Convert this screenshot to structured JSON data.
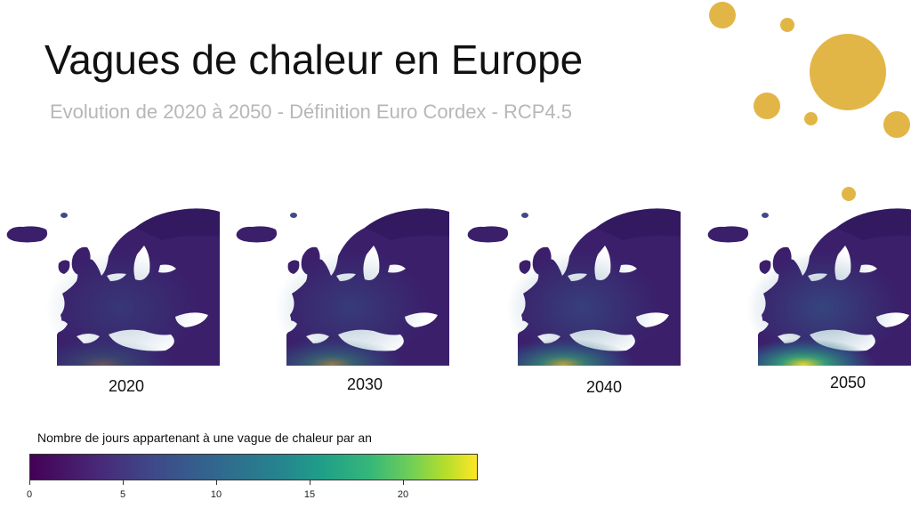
{
  "title": "Vagues de chaleur en Europe",
  "subtitle": "Evolution de 2020 à 2050 - Définition Euro Cordex - RCP4.5",
  "maps": [
    {
      "year": "2020",
      "south_intensity": 0.25
    },
    {
      "year": "2030",
      "south_intensity": 0.45
    },
    {
      "year": "2040",
      "south_intensity": 0.65
    },
    {
      "year": "2050",
      "south_intensity": 0.9
    }
  ],
  "legend": {
    "title": "Nombre de jours appartenant à une vague de chaleur par an",
    "ticks": [
      "0",
      "5",
      "10",
      "15",
      "20"
    ],
    "tick_values": [
      0,
      5,
      10,
      15,
      20
    ],
    "range": [
      0,
      24
    ],
    "colormap": "viridis"
  },
  "colors": {
    "bubble": "#e2b646",
    "map_base": "#3b1f6b",
    "map_dark": "#2d1558"
  }
}
